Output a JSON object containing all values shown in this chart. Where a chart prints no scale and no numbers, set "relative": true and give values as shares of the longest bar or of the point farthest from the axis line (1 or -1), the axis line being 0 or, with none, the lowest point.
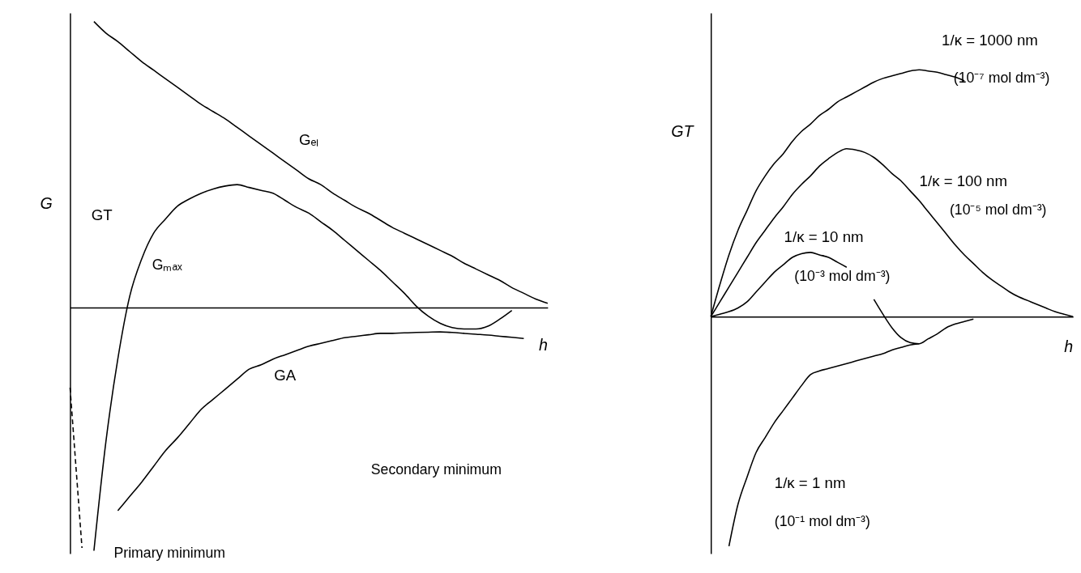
{
  "chart_data": [
    {
      "type": "line",
      "ylabel": "G",
      "xlabel": "h",
      "relative": true,
      "line_style": "solid",
      "categories": [
        null,
        null,
        null,
        null,
        null,
        null,
        null,
        null,
        null,
        null,
        null,
        null,
        null,
        null,
        null,
        null,
        null,
        null,
        null,
        null,
        null,
        null,
        null,
        null,
        null,
        null,
        null,
        null,
        null,
        null,
        null,
        null,
        null,
        null,
        null,
        null,
        null,
        null,
        null,
        null,
        null
      ],
      "series": [
        {
          "name": "Gₑₗ",
          "color": "#000000",
          "values": [
            null,
            null,
            1.0,
            0.96,
            0.93,
            0.895,
            0.86,
            0.83,
            0.8,
            0.77,
            0.74,
            0.71,
            0.685,
            0.66,
            0.63,
            0.6,
            0.57,
            0.54,
            0.51,
            0.48,
            0.45,
            0.43,
            0.4,
            0.375,
            0.35,
            0.33,
            0.305,
            0.28,
            0.26,
            0.24,
            0.22,
            0.2,
            0.18,
            0.155,
            0.135,
            0.115,
            0.095,
            0.07,
            0.05,
            0.03,
            0.015
          ]
        },
        {
          "name": "GT",
          "color": "#000000",
          "values": [
            null,
            null,
            -0.85,
            -0.47,
            -0.18,
            0.04,
            0.17,
            0.26,
            0.31,
            0.355,
            0.38,
            0.4,
            0.415,
            0.425,
            0.43,
            0.42,
            0.41,
            0.4,
            0.375,
            0.35,
            0.33,
            0.3,
            0.27,
            0.235,
            0.2,
            0.165,
            0.13,
            0.09,
            0.05,
            0.005,
            -0.03,
            -0.055,
            -0.07,
            -0.075,
            -0.075,
            -0.065,
            -0.04,
            -0.01,
            null,
            null,
            null
          ]
        },
        {
          "name": "GA",
          "color": "#000000",
          "values": [
            null,
            null,
            null,
            null,
            -0.71,
            -0.66,
            -0.61,
            -0.555,
            -0.5,
            -0.455,
            -0.405,
            -0.355,
            -0.32,
            -0.285,
            -0.25,
            -0.215,
            -0.2,
            -0.18,
            -0.165,
            -0.15,
            -0.135,
            -0.125,
            -0.115,
            -0.105,
            -0.1,
            -0.095,
            -0.09,
            -0.09,
            -0.088,
            -0.087,
            -0.086,
            -0.085,
            -0.087,
            -0.09,
            -0.093,
            -0.096,
            -0.1,
            -0.104,
            -0.108,
            null,
            null
          ]
        },
        {
          "color": "#000000",
          "line_style": "dashed",
          "values": [
            -0.28,
            -0.84,
            null,
            null,
            null,
            null,
            null,
            null,
            null,
            null,
            null,
            null,
            null,
            null,
            null,
            null,
            null,
            null,
            null,
            null,
            null,
            null,
            null,
            null,
            null,
            null,
            null,
            null,
            null,
            null,
            null,
            null,
            null,
            null,
            null,
            null,
            null,
            null,
            null,
            null,
            null
          ]
        }
      ],
      "annotations": [
        "Gₘₐₓ",
        "Secondary minimum",
        "Primary minimum"
      ]
    },
    {
      "type": "line",
      "ylabel": "GT",
      "xlabel": "h",
      "relative": true,
      "line_style": "solid",
      "categories": [
        null,
        null,
        null,
        null,
        null,
        null,
        null,
        null,
        null,
        null,
        null,
        null,
        null,
        null,
        null,
        null,
        null,
        null,
        null,
        null,
        null,
        null,
        null,
        null,
        null,
        null,
        null,
        null,
        null,
        null,
        null,
        null,
        null,
        null,
        null,
        null,
        null,
        null,
        null,
        null,
        null
      ],
      "series": [
        {
          "name": "1/κ = 1000 nm",
          "color": "#000000",
          "values": [
            0,
            0.13,
            0.25,
            0.35,
            0.43,
            0.51,
            0.57,
            0.62,
            0.66,
            0.71,
            0.75,
            0.78,
            0.815,
            0.84,
            0.87,
            0.89,
            0.91,
            0.93,
            0.95,
            0.965,
            0.975,
            0.985,
            0.995,
            1.0,
            0.995,
            0.99,
            0.98,
            0.97,
            0.955,
            null,
            null,
            null,
            null,
            null,
            null,
            null,
            null,
            null,
            null,
            null,
            null
          ]
        },
        {
          "name": "1/κ = 100 nm",
          "color": "#000000",
          "values": [
            0,
            0.06,
            0.12,
            0.18,
            0.24,
            0.3,
            0.35,
            0.4,
            0.445,
            0.495,
            0.535,
            0.57,
            0.61,
            0.64,
            0.665,
            0.68,
            0.675,
            0.665,
            0.645,
            0.615,
            0.58,
            0.55,
            0.51,
            0.47,
            0.425,
            0.38,
            0.335,
            0.29,
            0.25,
            0.215,
            0.18,
            0.15,
            0.125,
            0.1,
            0.08,
            0.065,
            0.05,
            0.035,
            0.02,
            0.01,
            0
          ]
        },
        {
          "name": "1/κ = 10 nm",
          "color": "#000000",
          "values": [
            0,
            0.01,
            0.02,
            0.035,
            0.06,
            0.1,
            0.14,
            0.18,
            0.21,
            0.24,
            0.255,
            0.26,
            0.25,
            0.24,
            0.22,
            0.2,
            null,
            null,
            0.07,
            0.01,
            -0.045,
            -0.085,
            -0.105,
            -0.11,
            -0.09,
            -0.07,
            -0.045,
            -0.03,
            -0.02,
            -0.01,
            null,
            null,
            null,
            null,
            null,
            null,
            null,
            null,
            null,
            null,
            null
          ]
        },
        {
          "name": "1/κ = 1 nm",
          "color": "#000000",
          "values": [
            null,
            null,
            -0.93,
            -0.76,
            -0.65,
            -0.55,
            -0.49,
            -0.43,
            -0.38,
            -0.33,
            -0.28,
            -0.235,
            -0.22,
            -0.21,
            -0.2,
            -0.19,
            -0.18,
            -0.17,
            -0.16,
            -0.15,
            -0.135,
            -0.125,
            -0.115,
            -0.11,
            null,
            null,
            null,
            null,
            null,
            null,
            null,
            null,
            null,
            null,
            null,
            null,
            null,
            null,
            null,
            null,
            null
          ]
        }
      ],
      "annotations": [
        "(10⁻⁷ mol dm⁻³)",
        "(10⁻⁵ mol dm⁻³)",
        "(10⁻³ mol dm⁻³)",
        "(10⁻¹ mol dm⁻³)"
      ]
    }
  ]
}
